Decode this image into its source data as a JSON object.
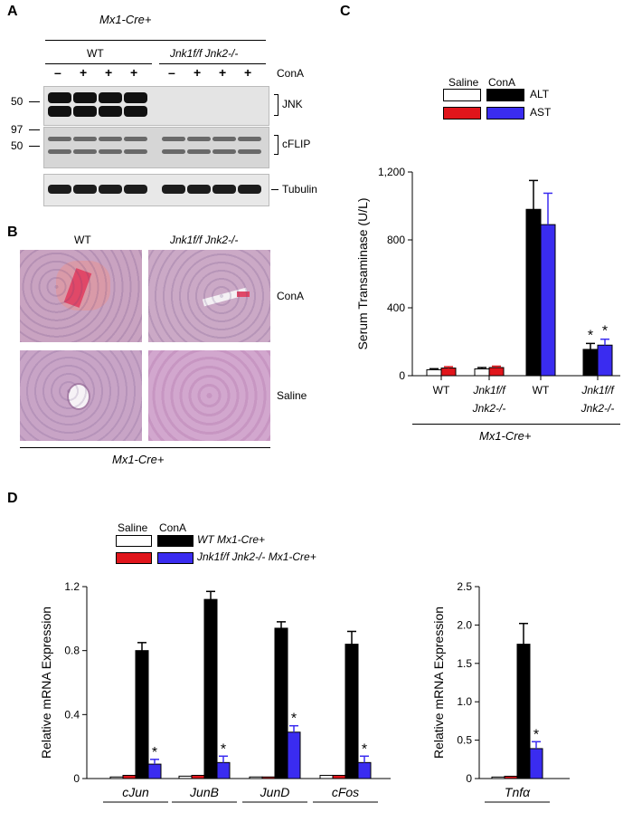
{
  "panelA": {
    "letter": "A",
    "genotype_header": "Mx1-Cre+",
    "wt_label": "WT",
    "ko_label": "Jnk1f/f Jnk2-/-",
    "treatment_signs": [
      "–",
      "+",
      "+",
      "+",
      "–",
      "+",
      "+",
      "+"
    ],
    "treatment_label": "ConA",
    "markers": {
      "m50a": "50",
      "m97": "97",
      "m50b": "50"
    },
    "blots": [
      "JNK",
      "cFLIP",
      "Tubulin"
    ]
  },
  "panelB": {
    "letter": "B",
    "col_wt": "WT",
    "col_ko": "Jnk1f/f Jnk2-/-",
    "row_cona": "ConA",
    "row_saline": "Saline",
    "footer": "Mx1-Cre+"
  },
  "panelC": {
    "letter": "C",
    "legend": {
      "saline": "Saline",
      "cona": "ConA",
      "alt": "ALT",
      "ast": "AST"
    },
    "colors": {
      "saline_alt": "#ffffff",
      "saline_ast": "#e0151b",
      "cona_alt": "#000000",
      "cona_ast": "#3a2cf0"
    },
    "footer": "Mx1-Cre+"
  },
  "panelD": {
    "letter": "D",
    "legend": {
      "saline": "Saline",
      "cona": "ConA",
      "wt": "WT Mx1-Cre+",
      "ko": "Jnk1f/f Jnk2-/- Mx1-Cre+"
    }
  },
  "chart_data": [
    {
      "id": "C",
      "type": "bar",
      "ylabel": "Serum  Transaminase (U/L)",
      "ylim": [
        0,
        1200
      ],
      "yticks": [
        0,
        400,
        800,
        1200
      ],
      "ytick_labels": [
        "0",
        "400",
        "800",
        "1,200"
      ],
      "groups": [
        {
          "label": "WT",
          "treatment": "Saline",
          "values": [
            35,
            45
          ],
          "errors": [
            6,
            8
          ],
          "sig": false
        },
        {
          "label": "Jnk1f/f Jnk2-/-",
          "treatment": "Saline",
          "values": [
            40,
            48
          ],
          "errors": [
            8,
            8
          ],
          "sig": false
        },
        {
          "label": "WT",
          "treatment": "ConA",
          "values": [
            980,
            890
          ],
          "errors": [
            170,
            185
          ],
          "sig": false
        },
        {
          "label": "Jnk1f/f Jnk2-/-",
          "treatment": "ConA",
          "values": [
            155,
            180
          ],
          "errors": [
            35,
            35
          ],
          "sig": true
        }
      ],
      "series": [
        {
          "name": "ALT"
        },
        {
          "name": "AST"
        }
      ]
    },
    {
      "id": "D1",
      "type": "bar",
      "ylabel": "Relative mRNA Expression",
      "ylim": [
        0,
        1.2
      ],
      "yticks": [
        0,
        0.4,
        0.8,
        1.2
      ],
      "ytick_labels": [
        "0",
        "0.4",
        "0.8",
        "1.2"
      ],
      "categories": [
        "cJun",
        "JunB",
        "JunD",
        "cFos"
      ],
      "series": [
        {
          "name": "WT Mx1-Cre+ Saline",
          "values": [
            0.01,
            0.015,
            0.01,
            0.02
          ],
          "errors": [
            0,
            0,
            0,
            0
          ]
        },
        {
          "name": "Jnk1f/f Jnk2-/- Mx1-Cre+ Saline",
          "values": [
            0.02,
            0.02,
            0.01,
            0.02
          ],
          "errors": [
            0,
            0,
            0,
            0
          ]
        },
        {
          "name": "WT Mx1-Cre+ ConA",
          "values": [
            0.8,
            1.12,
            0.94,
            0.84
          ],
          "errors": [
            0.05,
            0.05,
            0.04,
            0.08
          ]
        },
        {
          "name": "Jnk1f/f Jnk2-/- Mx1-Cre+ ConA",
          "values": [
            0.09,
            0.1,
            0.29,
            0.1
          ],
          "errors": [
            0.03,
            0.04,
            0.04,
            0.04
          ]
        }
      ],
      "sig": [
        true,
        true,
        true,
        true
      ]
    },
    {
      "id": "D2",
      "type": "bar",
      "ylabel": "Relative mRNA Expression",
      "ylim": [
        0,
        2.5
      ],
      "yticks": [
        0,
        0.5,
        1.0,
        1.5,
        2.0,
        2.5
      ],
      "ytick_labels": [
        "0",
        "0.5",
        "1.0",
        "1.5",
        "2.0",
        "2.5"
      ],
      "categories": [
        "Tnfα"
      ],
      "series": [
        {
          "name": "WT Mx1-Cre+ Saline",
          "values": [
            0.02
          ],
          "errors": [
            0
          ]
        },
        {
          "name": "Jnk1f/f Jnk2-/- Mx1-Cre+ Saline",
          "values": [
            0.03
          ],
          "errors": [
            0
          ]
        },
        {
          "name": "WT Mx1-Cre+ ConA",
          "values": [
            1.75
          ],
          "errors": [
            0.27
          ]
        },
        {
          "name": "Jnk1f/f Jnk2-/- Mx1-Cre+ ConA",
          "values": [
            0.39
          ],
          "errors": [
            0.09
          ]
        }
      ],
      "sig": [
        true
      ]
    }
  ]
}
